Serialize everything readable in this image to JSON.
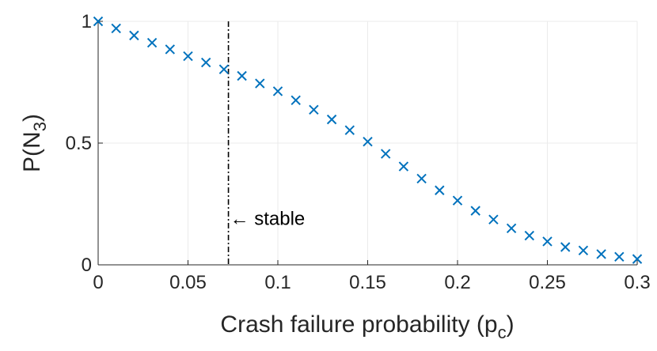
{
  "chart_data": {
    "type": "scatter",
    "xlabel": "Crash failure probability (p",
    "xlabel_sub": "c",
    "xlabel_close": ")",
    "ylabel": "P(N",
    "ylabel_sub": "3",
    "ylabel_close": ")",
    "xlim": [
      0,
      0.3
    ],
    "ylim": [
      0,
      1
    ],
    "x_ticks": [
      0,
      0.05,
      0.1,
      0.15,
      0.2,
      0.25,
      0.3
    ],
    "x_tick_labels": [
      "0",
      "0.05",
      "0.1",
      "0.15",
      "0.2",
      "0.25",
      "0.3"
    ],
    "y_ticks": [
      0,
      0.5,
      1
    ],
    "y_tick_labels": [
      "0",
      "0.5",
      "1"
    ],
    "grid": true,
    "marker": "x",
    "color": "#0072bd",
    "x": [
      0,
      0.01,
      0.02,
      0.03,
      0.04,
      0.05,
      0.06,
      0.07,
      0.08,
      0.09,
      0.1,
      0.11,
      0.12,
      0.13,
      0.14,
      0.15,
      0.16,
      0.17,
      0.18,
      0.19,
      0.2,
      0.21,
      0.22,
      0.23,
      0.24,
      0.25,
      0.26,
      0.27,
      0.28,
      0.29,
      0.3
    ],
    "y": [
      1.0,
      0.971,
      0.942,
      0.912,
      0.885,
      0.857,
      0.831,
      0.803,
      0.776,
      0.745,
      0.713,
      0.676,
      0.637,
      0.597,
      0.553,
      0.506,
      0.456,
      0.404,
      0.354,
      0.306,
      0.264,
      0.222,
      0.186,
      0.15,
      0.12,
      0.096,
      0.073,
      0.059,
      0.044,
      0.033,
      0.024
    ],
    "vline": {
      "x": 0.0725,
      "style": "dash-dot",
      "color": "#000000"
    },
    "annotation": {
      "text": "← stable",
      "x": 0.0725,
      "y": 0.19
    }
  }
}
